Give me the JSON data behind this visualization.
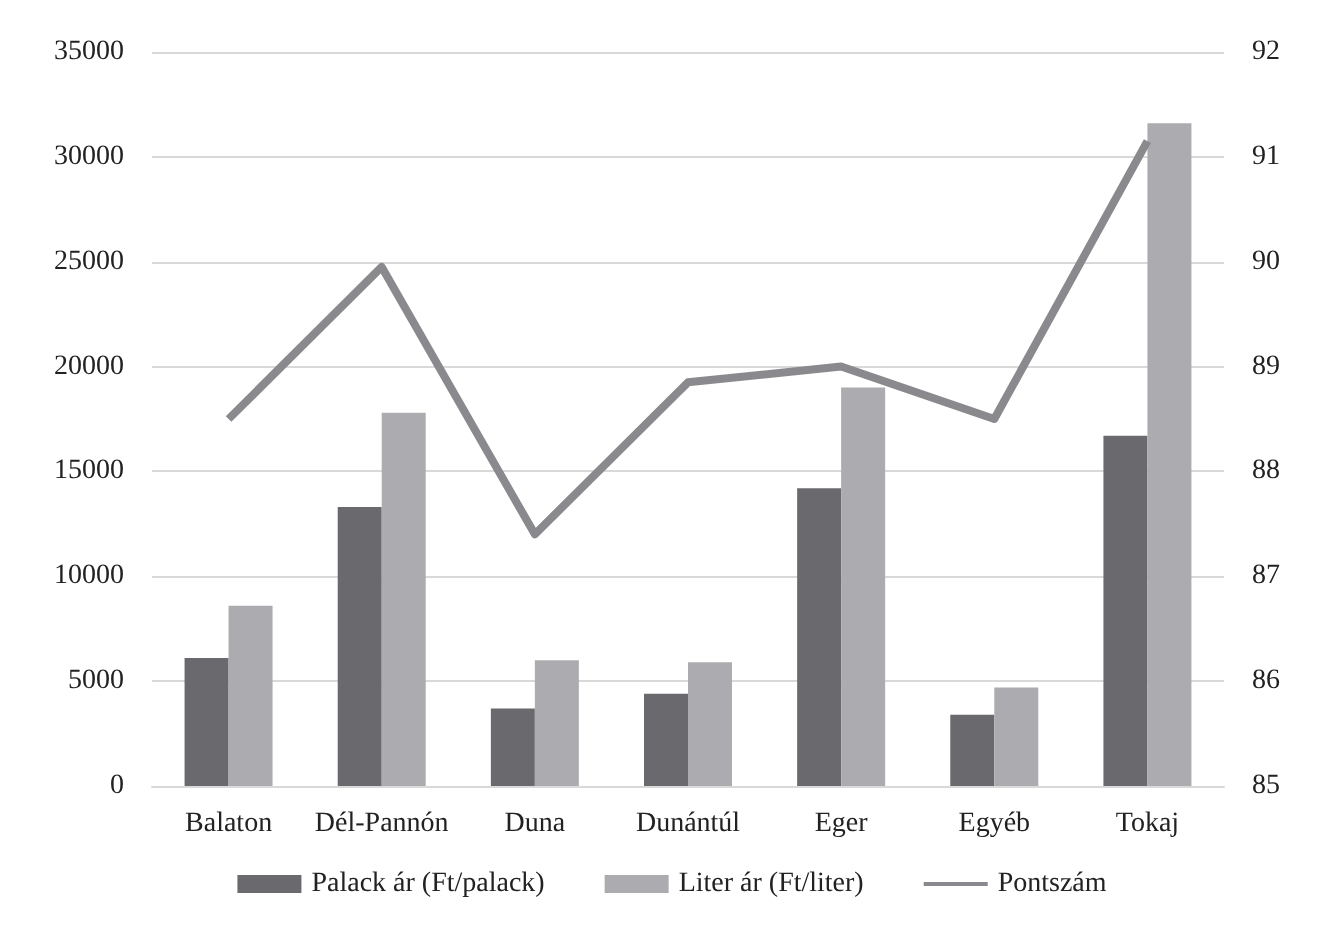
{
  "chart_data": {
    "type": "bar",
    "categories": [
      "Balaton",
      "Dél-Pannón",
      "Duna",
      "Dunántúl",
      "Eger",
      "Egyéb",
      "Tokaj"
    ],
    "series": [
      {
        "name": "Palack ár (Ft/palack)",
        "color": "#6a6a6e",
        "values": [
          6100,
          13300,
          3700,
          4400,
          14200,
          3400,
          16700
        ]
      },
      {
        "name": "Liter ár (Ft/liter)",
        "color": "#acacb0",
        "values": [
          8600,
          17800,
          6000,
          5900,
          19000,
          4700,
          31600
        ]
      },
      {
        "name": "Pontszám",
        "type": "line",
        "axis": "y2",
        "color": "#8a8a8e",
        "values": [
          88.5,
          89.95,
          87.4,
          88.85,
          89.0,
          88.5,
          91.15
        ]
      }
    ],
    "ylim": [
      0,
      35000
    ],
    "yticks": [
      0,
      5000,
      10000,
      15000,
      20000,
      25000,
      30000,
      35000
    ],
    "y2lim": [
      85,
      92
    ],
    "y2ticks": [
      85,
      86,
      87,
      88,
      89,
      90,
      91,
      92
    ],
    "grid": "y",
    "legend": "bottom",
    "marker": "none"
  }
}
